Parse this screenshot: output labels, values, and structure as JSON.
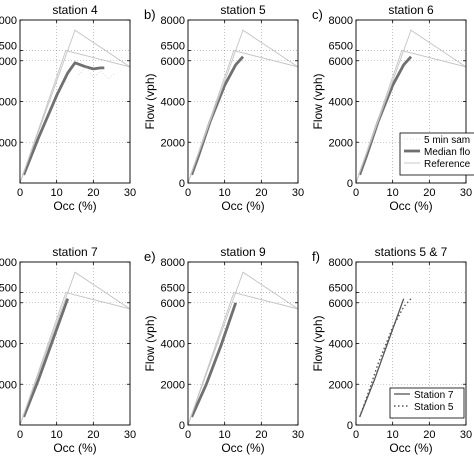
{
  "chart_data": [
    {
      "type": "line",
      "panel_letter": "",
      "title": "station 4",
      "xlabel": "Occ (%)",
      "ylabel": "",
      "xlim": [
        0,
        30
      ],
      "ylim": [
        0,
        8000
      ],
      "xticks": [
        0,
        10,
        20,
        30
      ],
      "xtick_labels": [
        "0",
        "10",
        "20",
        "30"
      ],
      "yticks": [
        2000,
        4000,
        6000,
        8000
      ],
      "ytick_labels": [
        "000",
        "000",
        "000",
        "000"
      ],
      "ytick_extra": [
        6500
      ],
      "ytick_extra_labels": [
        "500"
      ],
      "grid": true,
      "legend": null,
      "series": [
        {
          "style": "median",
          "x": [
            1,
            5,
            10,
            13,
            15,
            18,
            20,
            22,
            23
          ],
          "y": [
            400,
            2200,
            4300,
            5400,
            5900,
            5700,
            5600,
            5650,
            5650
          ]
        },
        {
          "style": "reference",
          "x": [
            0,
            15,
            30
          ],
          "y": [
            0,
            7500,
            5700
          ]
        },
        {
          "style": "reference",
          "x": [
            0,
            12.5,
            30
          ],
          "y": [
            0,
            6500,
            5700
          ]
        },
        {
          "style": "samples",
          "x": [
            16,
            18,
            20,
            22,
            24,
            26
          ],
          "y": [
            5300,
            5700,
            5200,
            5500,
            5100,
            5400
          ]
        }
      ]
    },
    {
      "type": "line",
      "panel_letter": "b)",
      "title": "station 5",
      "xlabel": "Occ (%)",
      "ylabel": "Flow (vph)",
      "xlim": [
        0,
        30
      ],
      "ylim": [
        0,
        8000
      ],
      "xticks": [
        0,
        10,
        20,
        30
      ],
      "xtick_labels": [
        "0",
        "10",
        "20",
        "30"
      ],
      "yticks": [
        0,
        2000,
        4000,
        6000,
        8000
      ],
      "ytick_labels": [
        "0",
        "2000",
        "4000",
        "6000",
        "8000"
      ],
      "ytick_extra": [
        6500
      ],
      "ytick_extra_labels": [
        "6500"
      ],
      "grid": true,
      "legend": null,
      "series": [
        {
          "style": "median",
          "x": [
            1,
            3,
            6,
            10,
            13,
            15
          ],
          "y": [
            400,
            1400,
            3000,
            4800,
            5800,
            6200
          ]
        },
        {
          "style": "reference",
          "x": [
            0,
            15,
            30
          ],
          "y": [
            0,
            7500,
            5700
          ]
        },
        {
          "style": "reference",
          "x": [
            0,
            12.5,
            30
          ],
          "y": [
            0,
            6500,
            5700
          ]
        }
      ]
    },
    {
      "type": "line",
      "panel_letter": "c)",
      "title": "station 6",
      "xlabel": "Occ (%)",
      "ylabel": "Flow (vph)",
      "xlim": [
        0,
        30
      ],
      "ylim": [
        0,
        8000
      ],
      "xticks": [
        0,
        10,
        20,
        30
      ],
      "xtick_labels": [
        "0",
        "10",
        "20",
        "30"
      ],
      "yticks": [
        0,
        2000,
        4000,
        6000,
        8000
      ],
      "ytick_labels": [
        "0",
        "2000",
        "4000",
        "6000",
        "8000"
      ],
      "ytick_extra": [
        6500
      ],
      "ytick_extra_labels": [
        "6500"
      ],
      "grid": true,
      "legend": {
        "placement": "right",
        "entries": [
          {
            "style": "samples",
            "label": "5 min sam"
          },
          {
            "style": "median",
            "label": "Median flo"
          },
          {
            "style": "reference",
            "label": "Reference"
          }
        ]
      },
      "series": [
        {
          "style": "median",
          "x": [
            1,
            3,
            6,
            10,
            13,
            15
          ],
          "y": [
            400,
            1400,
            3000,
            4800,
            5800,
            6200
          ]
        },
        {
          "style": "reference",
          "x": [
            0,
            15,
            30
          ],
          "y": [
            0,
            7500,
            5700
          ]
        },
        {
          "style": "reference",
          "x": [
            0,
            12.5,
            30
          ],
          "y": [
            0,
            6500,
            5700
          ]
        }
      ]
    },
    {
      "type": "line",
      "panel_letter": "",
      "title": "station 7",
      "xlabel": "Occ (%)",
      "ylabel": "",
      "xlim": [
        0,
        30
      ],
      "ylim": [
        0,
        8000
      ],
      "xticks": [
        0,
        10,
        20,
        30
      ],
      "xtick_labels": [
        "0",
        "10",
        "20",
        "30"
      ],
      "yticks": [
        2000,
        4000,
        6000,
        8000
      ],
      "ytick_labels": [
        "000",
        "000",
        "000",
        "000"
      ],
      "ytick_extra": [
        6500
      ],
      "ytick_extra_labels": [
        "500"
      ],
      "grid": true,
      "legend": null,
      "series": [
        {
          "style": "median",
          "x": [
            1,
            5,
            9,
            13
          ],
          "y": [
            400,
            2200,
            4200,
            6200
          ]
        },
        {
          "style": "reference",
          "x": [
            0,
            15,
            30
          ],
          "y": [
            0,
            7500,
            5700
          ]
        },
        {
          "style": "reference",
          "x": [
            0,
            12.5,
            30
          ],
          "y": [
            0,
            6500,
            5700
          ]
        }
      ]
    },
    {
      "type": "line",
      "panel_letter": "e)",
      "title": "station 9",
      "xlabel": "Occ (%)",
      "ylabel": "Flow (vph)",
      "xlim": [
        0,
        30
      ],
      "ylim": [
        0,
        8000
      ],
      "xticks": [
        0,
        10,
        20,
        30
      ],
      "xtick_labels": [
        "0",
        "10",
        "20",
        "30"
      ],
      "yticks": [
        0,
        2000,
        4000,
        6000,
        8000
      ],
      "ytick_labels": [
        "0",
        "2000",
        "4000",
        "6000",
        "8000"
      ],
      "ytick_extra": [
        6500
      ],
      "ytick_extra_labels": [
        "6500"
      ],
      "grid": true,
      "legend": null,
      "series": [
        {
          "style": "median",
          "x": [
            1,
            5,
            9,
            13
          ],
          "y": [
            400,
            2000,
            3900,
            6000
          ]
        },
        {
          "style": "reference",
          "x": [
            0,
            15,
            30
          ],
          "y": [
            0,
            7500,
            5700
          ]
        },
        {
          "style": "reference",
          "x": [
            0,
            12.5,
            30
          ],
          "y": [
            0,
            6500,
            5700
          ]
        }
      ]
    },
    {
      "type": "line",
      "panel_letter": "f)",
      "title": "stations 5 & 7",
      "xlabel": "Occ (%)",
      "ylabel": "Flow (vph)",
      "xlim": [
        0,
        30
      ],
      "ylim": [
        0,
        8000
      ],
      "xticks": [
        0,
        10,
        20,
        30
      ],
      "xtick_labels": [
        "0",
        "10",
        "20",
        "30"
      ],
      "yticks": [
        0,
        2000,
        4000,
        6000,
        8000
      ],
      "ytick_labels": [
        "0",
        "2000",
        "4000",
        "6000",
        "8000"
      ],
      "ytick_extra": [
        6500
      ],
      "ytick_extra_labels": [
        "6500"
      ],
      "grid": true,
      "legend": {
        "placement": "bottom-right",
        "entries": [
          {
            "style": "solid-thin",
            "label": "Station 7"
          },
          {
            "style": "dotted",
            "label": "Station 5"
          }
        ]
      },
      "series": [
        {
          "name": "Station 7",
          "style": "solid-thin",
          "x": [
            1,
            5,
            9,
            13
          ],
          "y": [
            400,
            2200,
            4200,
            6200
          ]
        },
        {
          "name": "Station 5",
          "style": "dotted",
          "x": [
            1,
            3,
            6,
            10,
            13,
            15
          ],
          "y": [
            400,
            1400,
            3000,
            4800,
            5800,
            6200
          ]
        }
      ]
    }
  ],
  "colors": {
    "median": "#707070",
    "reference": "#c4c4c4",
    "samples": "#cccccc",
    "grid": "#9a9a9a",
    "axis": "#000000"
  }
}
